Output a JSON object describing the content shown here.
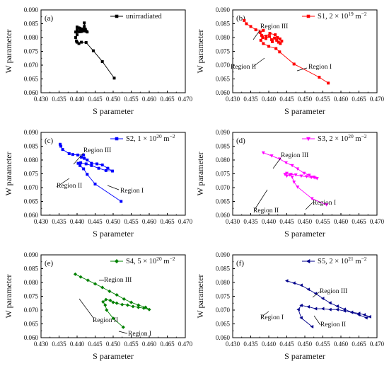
{
  "chart_data": [
    {
      "type": "line",
      "panel_label": "(a)",
      "xlabel": "S parameter",
      "ylabel": "W parameter",
      "xlim": [
        0.43,
        0.47
      ],
      "ylim": [
        0.06,
        0.09
      ],
      "xticks": [
        "0.430",
        "0.435",
        "0.440",
        "0.445",
        "0.450",
        "0.455",
        "0.460",
        "0.465",
        "0.470"
      ],
      "yticks": [
        "0.060",
        "0.065",
        "0.070",
        "0.075",
        "0.080",
        "0.085",
        "0.090"
      ],
      "legend_placement": "top-right",
      "series": [
        {
          "name": "unirradiated",
          "color": "#000000",
          "marker": "square",
          "x": [
            0.4503,
            0.447,
            0.4445,
            0.4425,
            0.4412,
            0.4405,
            0.44,
            0.4398,
            0.4396,
            0.44,
            0.4396,
            0.4403,
            0.4409,
            0.44,
            0.4413,
            0.4408,
            0.4418,
            0.4405,
            0.4424,
            0.441,
            0.4423,
            0.44,
            0.4428,
            0.4415,
            0.442,
            0.442,
            0.4425
          ],
          "y": [
            0.0653,
            0.0713,
            0.0752,
            0.0782,
            0.0783,
            0.0778,
            0.0783,
            0.0787,
            0.08,
            0.081,
            0.082,
            0.0821,
            0.0821,
            0.0828,
            0.0822,
            0.0833,
            0.0824,
            0.0835,
            0.0824,
            0.0828,
            0.083,
            0.0838,
            0.082,
            0.0831,
            0.084,
            0.0853,
            0.0823
          ]
        }
      ]
    },
    {
      "type": "line",
      "panel_label": "(b)",
      "xlabel": "S parameter",
      "ylabel": "W parameter",
      "xlim": [
        0.43,
        0.47
      ],
      "ylim": [
        0.06,
        0.09
      ],
      "xticks": [
        "0.430",
        "0.435",
        "0.440",
        "0.445",
        "0.450",
        "0.455",
        "0.460",
        "0.465",
        "0.470"
      ],
      "yticks": [
        "0.060",
        "0.065",
        "0.070",
        "0.075",
        "0.080",
        "0.085",
        "0.090"
      ],
      "legend_placement": "top-right",
      "series": [
        {
          "name": "S1, 2 × 10¹⁹ m⁻²",
          "legend_main": "S1, 2 × 10",
          "legend_exp1": "19",
          "legend_mid": " m",
          "legend_exp2": "−2",
          "color": "#ff0000",
          "marker": "square",
          "x": [
            0.4565,
            0.454,
            0.447,
            0.443,
            0.442,
            0.44,
            0.4385,
            0.4378,
            0.4383,
            0.4392,
            0.4402,
            0.4408,
            0.441,
            0.4416,
            0.4422,
            0.4427,
            0.4432,
            0.4436,
            0.4431,
            0.4424,
            0.4418,
            0.4403,
            0.4393,
            0.438,
            0.4376,
            0.4385,
            0.4364,
            0.435,
            0.4338,
            0.4332
          ],
          "y": [
            0.0635,
            0.0656,
            0.0704,
            0.0748,
            0.076,
            0.0768,
            0.0778,
            0.079,
            0.08,
            0.0796,
            0.0804,
            0.0792,
            0.0785,
            0.0798,
            0.079,
            0.0783,
            0.0778,
            0.0787,
            0.0795,
            0.08,
            0.081,
            0.0815,
            0.0805,
            0.0808,
            0.0818,
            0.0826,
            0.0828,
            0.084,
            0.085,
            0.0862
          ]
        }
      ],
      "annotations": [
        "Region III",
        "Region II",
        "Region I"
      ]
    },
    {
      "type": "line",
      "panel_label": "(c)",
      "xlabel": "S parameter",
      "ylabel": "W parameter",
      "xlim": [
        0.43,
        0.47
      ],
      "ylim": [
        0.06,
        0.09
      ],
      "xticks": [
        "0.430",
        "0.435",
        "0.440",
        "0.445",
        "0.450",
        "0.455",
        "0.460",
        "0.465",
        "0.470"
      ],
      "yticks": [
        "0.060",
        "0.065",
        "0.070",
        "0.075",
        "0.080",
        "0.085",
        "0.090"
      ],
      "legend_placement": "top-right",
      "series": [
        {
          "name": "S2, 1 × 10²⁰ m⁻²",
          "legend_main": "S2, 1 × 10",
          "legend_exp1": "20",
          "legend_mid": " m",
          "legend_exp2": "−2",
          "color": "#0000ff",
          "marker": "square",
          "x": [
            0.4522,
            0.445,
            0.4428,
            0.4418,
            0.4408,
            0.4403,
            0.441,
            0.4425,
            0.444,
            0.446,
            0.448,
            0.4498,
            0.4485,
            0.447,
            0.4455,
            0.444,
            0.4428,
            0.442,
            0.4412,
            0.4418,
            0.4402,
            0.4388,
            0.4378,
            0.436,
            0.4355,
            0.4353
          ],
          "y": [
            0.065,
            0.0713,
            0.0748,
            0.0768,
            0.078,
            0.0788,
            0.079,
            0.0786,
            0.078,
            0.077,
            0.0762,
            0.076,
            0.077,
            0.0782,
            0.0786,
            0.0788,
            0.08,
            0.0806,
            0.081,
            0.0818,
            0.0818,
            0.082,
            0.0823,
            0.0838,
            0.085,
            0.0857
          ]
        }
      ],
      "annotations": [
        "Region III",
        "Region II",
        "Region I"
      ]
    },
    {
      "type": "line",
      "panel_label": "(d)",
      "xlabel": "S parameter",
      "ylabel": "W parameter",
      "xlim": [
        0.43,
        0.47
      ],
      "ylim": [
        0.06,
        0.09
      ],
      "xticks": [
        "0.430",
        "0.435",
        "0.440",
        "0.445",
        "0.450",
        "0.455",
        "0.460",
        "0.465",
        "0.470"
      ],
      "yticks": [
        "0.060",
        "0.065",
        "0.070",
        "0.075",
        "0.080",
        "0.085",
        "0.090"
      ],
      "legend_placement": "top-right",
      "series": [
        {
          "name": "S3, 2 × 10²⁰ m⁻²",
          "legend_main": "S3, 2 × 10",
          "legend_exp1": "20",
          "legend_mid": " m",
          "legend_exp2": "−2",
          "color": "#ff00ff",
          "marker": "triangle-down",
          "x": [
            0.456,
            0.452,
            0.448,
            0.447,
            0.4465,
            0.4458,
            0.445,
            0.4445,
            0.445,
            0.4462,
            0.4475,
            0.449,
            0.4505,
            0.4518,
            0.4528,
            0.4534,
            0.4525,
            0.4512,
            0.4498,
            0.448,
            0.4465,
            0.4448,
            0.443,
            0.4408,
            0.4385
          ],
          "y": [
            0.0638,
            0.066,
            0.0702,
            0.072,
            0.0738,
            0.0746,
            0.0742,
            0.0748,
            0.0752,
            0.0748,
            0.0746,
            0.0742,
            0.074,
            0.0737,
            0.0735,
            0.0733,
            0.0738,
            0.0745,
            0.0752,
            0.0768,
            0.078,
            0.079,
            0.0804,
            0.0815,
            0.0826
          ]
        }
      ],
      "annotations": [
        "Region III",
        "Region II",
        "Region I"
      ]
    },
    {
      "type": "line",
      "panel_label": "(e)",
      "xlabel": "S parameter",
      "ylabel": "W parameter",
      "xlim": [
        0.43,
        0.47
      ],
      "ylim": [
        0.06,
        0.09
      ],
      "xticks": [
        "0.430",
        "0.435",
        "0.440",
        "0.445",
        "0.450",
        "0.455",
        "0.460",
        "0.465",
        "0.470"
      ],
      "yticks": [
        "0.060",
        "0.065",
        "0.070",
        "0.075",
        "0.080",
        "0.085",
        "0.090"
      ],
      "legend_placement": "top-right",
      "series": [
        {
          "name": "S4, 5 × 10²⁰ m⁻²",
          "legend_main": "S4, 5 × 10",
          "legend_exp1": "20",
          "legend_mid": " m",
          "legend_exp2": "−2",
          "color": "#008000",
          "marker": "diamond",
          "x": [
            0.4528,
            0.45,
            0.4482,
            0.4478,
            0.4472,
            0.448,
            0.4492,
            0.45,
            0.451,
            0.4525,
            0.454,
            0.4555,
            0.457,
            0.4585,
            0.46,
            0.459,
            0.457,
            0.455,
            0.453,
            0.451,
            0.449,
            0.447,
            0.445,
            0.443,
            0.441,
            0.4395
          ],
          "y": [
            0.0638,
            0.067,
            0.07,
            0.0718,
            0.073,
            0.0738,
            0.0735,
            0.0728,
            0.0725,
            0.072,
            0.0718,
            0.0713,
            0.071,
            0.0707,
            0.0702,
            0.071,
            0.0718,
            0.0728,
            0.074,
            0.0755,
            0.0768,
            0.0782,
            0.0795,
            0.0808,
            0.082,
            0.083
          ]
        }
      ],
      "annotations": [
        "Region III",
        "Region II",
        "Region I"
      ]
    },
    {
      "type": "line",
      "panel_label": "(f)",
      "xlabel": "S parameter",
      "ylabel": "W parameter",
      "xlim": [
        0.43,
        0.47
      ],
      "ylim": [
        0.06,
        0.09
      ],
      "xticks": [
        "0.430",
        "0.435",
        "0.440",
        "0.445",
        "0.450",
        "0.455",
        "0.460",
        "0.465",
        "0.470"
      ],
      "yticks": [
        "0.060",
        "0.065",
        "0.070",
        "0.075",
        "0.080",
        "0.085",
        "0.090"
      ],
      "legend_placement": "top-right",
      "series": [
        {
          "name": "S5, 2 × 10²¹ m⁻²",
          "legend_main": "S5, 2 × 10",
          "legend_exp1": "21",
          "legend_mid": " m",
          "legend_exp2": "−2",
          "color": "#00008b",
          "marker": "triangle-left",
          "x": [
            0.452,
            0.449,
            0.4482,
            0.449,
            0.451,
            0.453,
            0.455,
            0.457,
            0.459,
            0.461,
            0.463,
            0.465,
            0.4665,
            0.468,
            0.467,
            0.465,
            0.463,
            0.461,
            0.459,
            0.457,
            0.455,
            0.453,
            0.451,
            0.449,
            0.447,
            0.445
          ],
          "y": [
            0.064,
            0.0672,
            0.0702,
            0.0717,
            0.0712,
            0.0705,
            0.0705,
            0.0702,
            0.0702,
            0.0697,
            0.0692,
            0.0688,
            0.0683,
            0.0676,
            0.0672,
            0.0683,
            0.0692,
            0.0703,
            0.0714,
            0.0726,
            0.0742,
            0.076,
            0.0775,
            0.079,
            0.0798,
            0.0806
          ]
        }
      ],
      "annotations": [
        "Region III",
        "Region II",
        "Region I"
      ]
    }
  ]
}
